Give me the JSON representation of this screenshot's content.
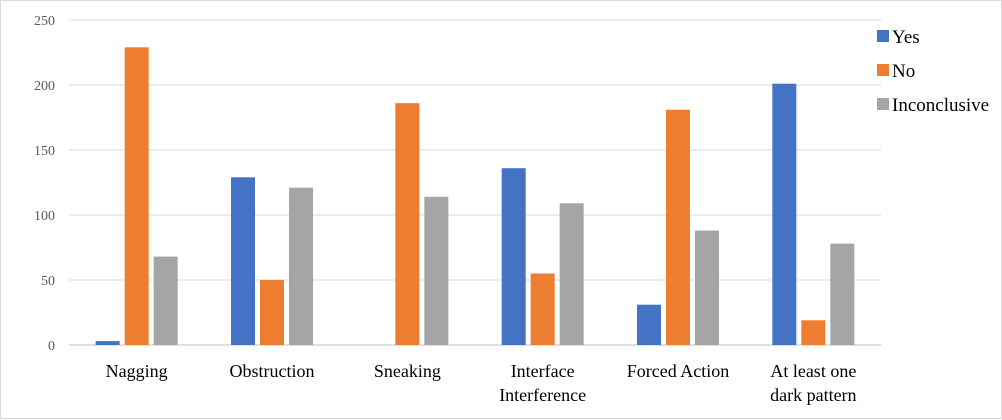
{
  "chart_data": {
    "type": "bar",
    "categories": [
      [
        "Nagging"
      ],
      [
        "Obstruction"
      ],
      [
        "Sneaking"
      ],
      [
        "Interface",
        "Interference"
      ],
      [
        "Forced Action"
      ],
      [
        "At least one",
        "dark pattern"
      ]
    ],
    "series": [
      {
        "name": "Yes",
        "color": "#4472C4",
        "values": [
          3,
          129,
          0,
          136,
          31,
          201
        ]
      },
      {
        "name": "No",
        "color": "#ED7D31",
        "values": [
          229,
          50,
          186,
          55,
          181,
          19
        ]
      },
      {
        "name": "Inconclusive",
        "color": "#A5A5A5",
        "values": [
          68,
          121,
          114,
          109,
          88,
          78
        ]
      }
    ],
    "yticks": [
      "0",
      "50",
      "100",
      "150",
      "200",
      "250"
    ],
    "ylim": [
      0,
      250
    ],
    "grid": true,
    "legend_position": "right",
    "title": "",
    "xlabel": "",
    "ylabel": ""
  }
}
